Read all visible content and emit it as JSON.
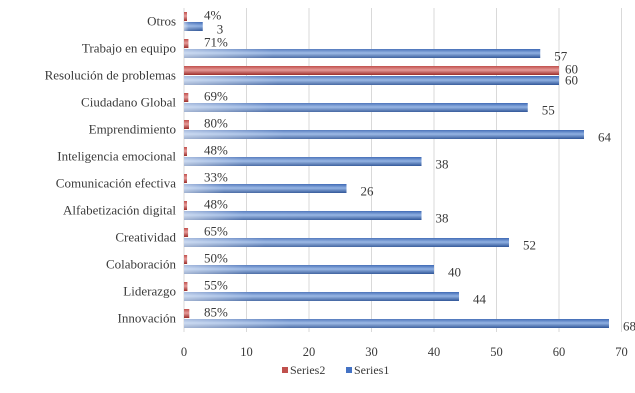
{
  "chart_data": {
    "type": "bar",
    "orientation": "horizontal",
    "categories": [
      "Innovación",
      "Liderazgo",
      "Colaboración",
      "Creatividad",
      "Alfabetización digital",
      "Comunicación efectiva",
      "Inteligencia emocional",
      "Emprendimiento",
      "Ciudadano Global",
      "Resolución de problemas",
      "Trabajo en equipo",
      "Otros"
    ],
    "series": [
      {
        "name": "Series1",
        "values": [
          68,
          44,
          40,
          52,
          38,
          26,
          38,
          64,
          55,
          60,
          57,
          3
        ],
        "labels": [
          "68",
          "44",
          "40",
          "52",
          "38",
          "26",
          "38",
          "64",
          "55",
          "60",
          "57",
          "3"
        ],
        "color": "#4472c4"
      },
      {
        "name": "Series2",
        "values": [
          0.85,
          0.55,
          0.5,
          0.65,
          0.48,
          0.33,
          0.48,
          0.8,
          0.69,
          60,
          0.71,
          0.04
        ],
        "labels": [
          "85%",
          "55%",
          "50%",
          "65%",
          "48%",
          "33%",
          "48%",
          "80%",
          "69%",
          "60",
          "71%",
          "4%"
        ],
        "color": "#c0504d"
      }
    ],
    "xlim": [
      0,
      70
    ],
    "xticks": [
      "0",
      "10",
      "20",
      "30",
      "40",
      "50",
      "60",
      "70"
    ],
    "grid": true,
    "legend": "bottom"
  }
}
